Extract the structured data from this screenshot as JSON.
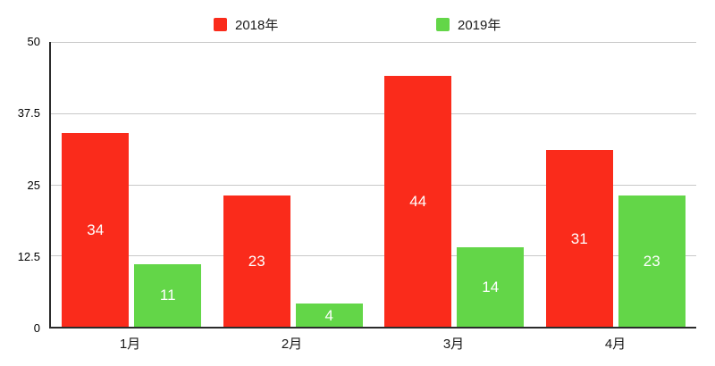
{
  "chart_data": {
    "type": "bar",
    "title": "",
    "categories": [
      "1月",
      "2月",
      "3月",
      "4月"
    ],
    "series": [
      {
        "name": "2018年",
        "color": "#fa2b1b",
        "values": [
          34,
          23,
          44,
          31
        ]
      },
      {
        "name": "2019年",
        "color": "#63d648",
        "values": [
          11,
          4,
          14,
          23
        ]
      }
    ],
    "ylim": [
      0,
      50
    ],
    "y_ticks": [
      "50",
      "37.5",
      "25",
      "12.5",
      "0"
    ],
    "value_label_color": "#ffffff",
    "grid": true,
    "legend_position": "top"
  }
}
